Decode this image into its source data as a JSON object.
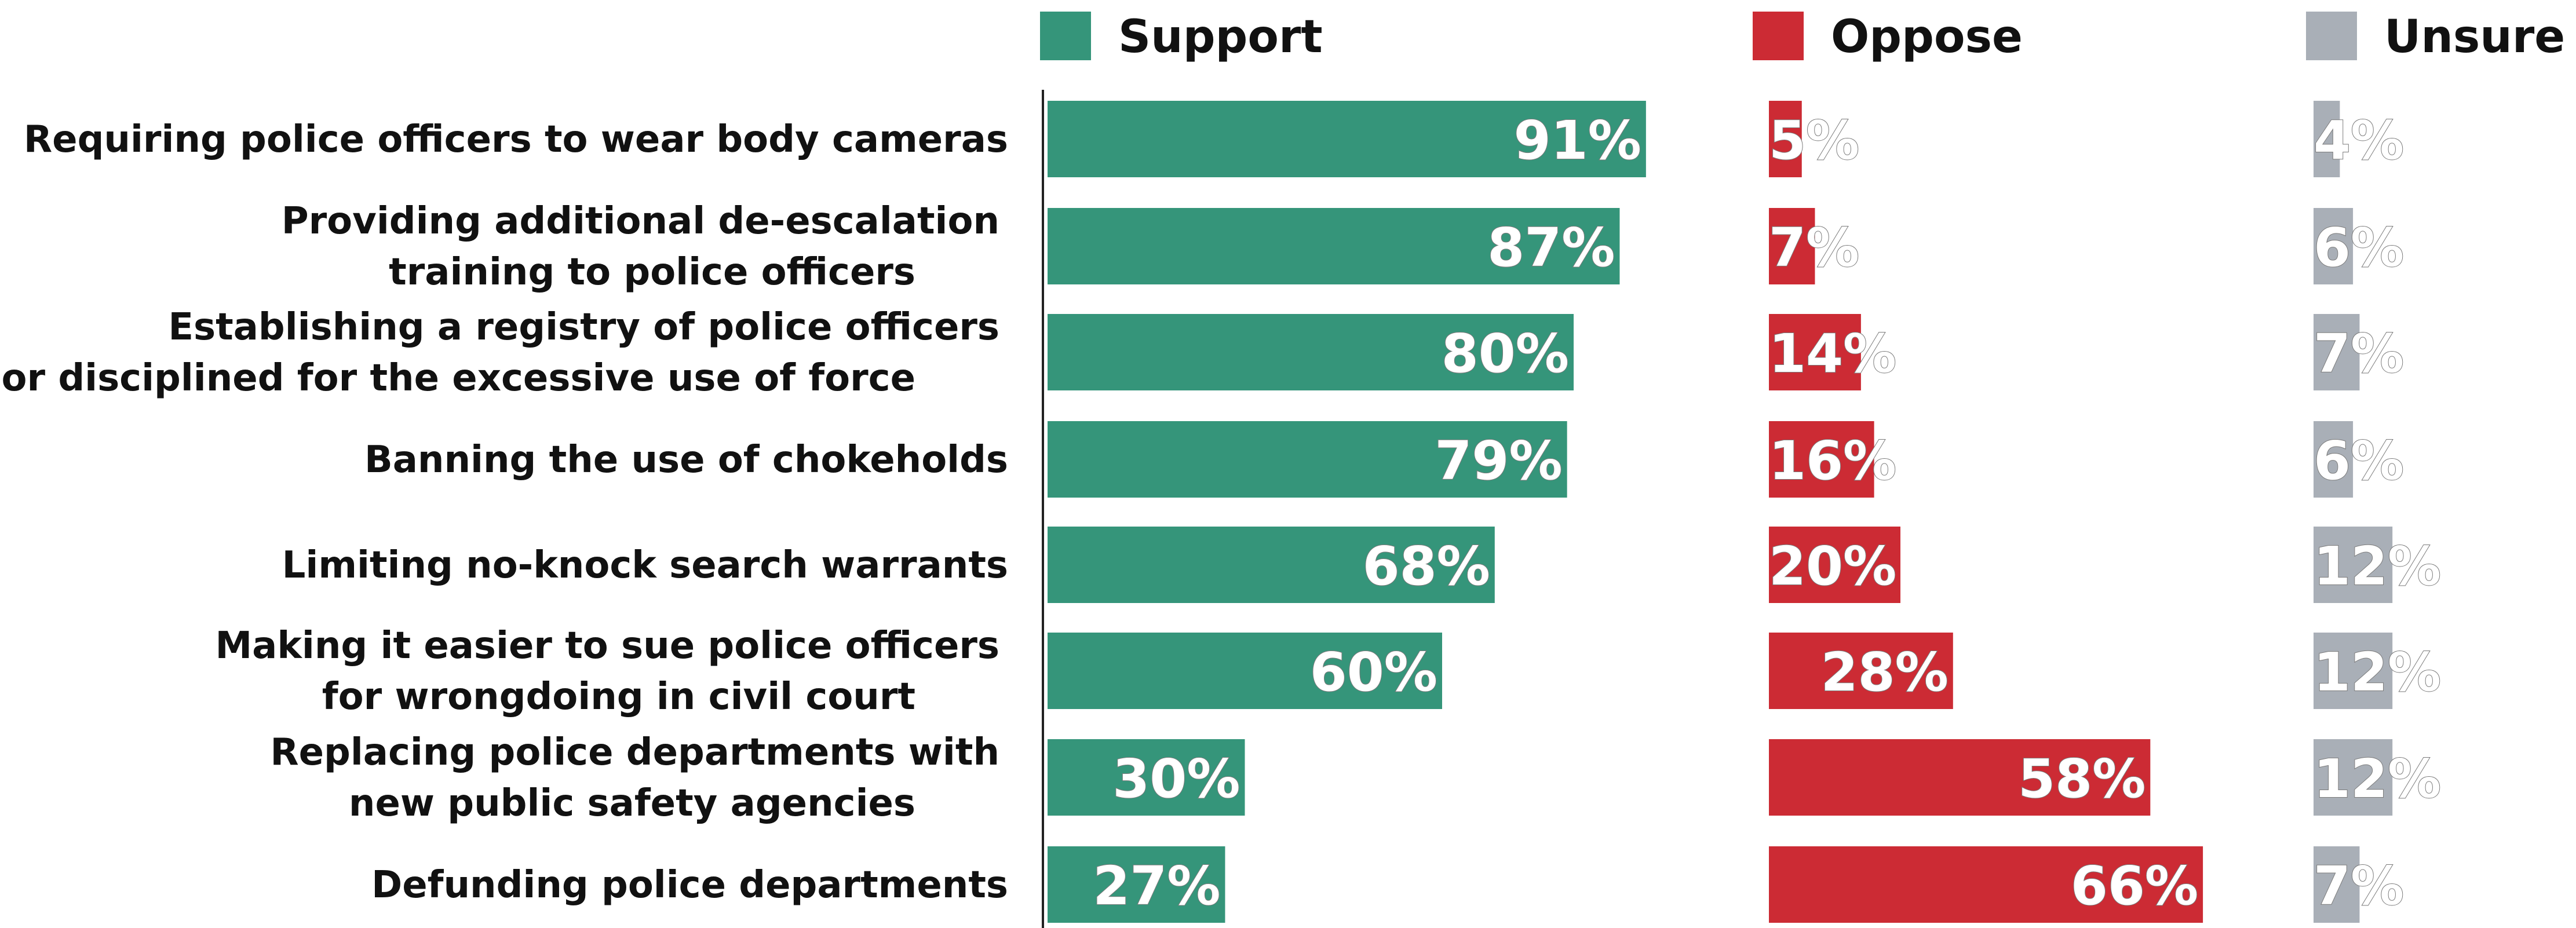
{
  "chart_data": {
    "type": "bar",
    "orientation": "horizontal",
    "layout": "side-by-side panels per series",
    "legend_position": "top",
    "grid": false,
    "xlim": [
      0,
      100
    ],
    "value_suffix": "%",
    "categories": [
      [
        "Requiring police officers to wear body cameras"
      ],
      [
        "Providing additional de-escalation",
        "training to police officers"
      ],
      [
        "Establishing a registry of police officers",
        "fired or disciplined for the excessive use of force"
      ],
      [
        "Banning the use of chokeholds"
      ],
      [
        "Limiting no-knock search warrants"
      ],
      [
        "Making it easier to sue police officers",
        "for wrongdoing in civil court"
      ],
      [
        "Replacing police departments with",
        "new public safety agencies"
      ],
      [
        "Defunding police departments"
      ]
    ],
    "series": [
      {
        "name": "Support",
        "color": "#35957a",
        "values": [
          91,
          87,
          80,
          79,
          68,
          60,
          30,
          27
        ]
      },
      {
        "name": "Oppose",
        "color": "#cc2b34",
        "values": [
          5,
          7,
          14,
          16,
          20,
          28,
          58,
          66
        ]
      },
      {
        "name": "Unsure",
        "color": "#a9afb7",
        "values": [
          4,
          6,
          7,
          6,
          12,
          12,
          12,
          7
        ]
      }
    ]
  }
}
